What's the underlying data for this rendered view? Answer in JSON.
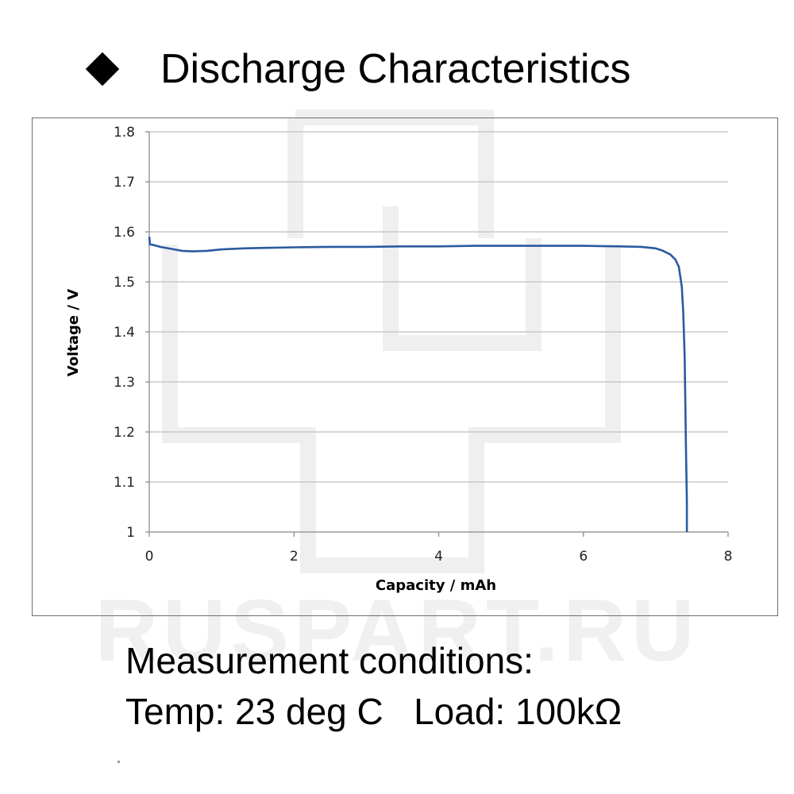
{
  "header": {
    "bullet_icon": "diamond-bullet-icon",
    "title": "Discharge Characteristics"
  },
  "watermark": {
    "text": "RUSPART.RU",
    "color": "#efefef"
  },
  "chart_data": {
    "type": "line",
    "title": "",
    "xlabel": "Capacity  /  mAh",
    "ylabel": "Voltage  /  V",
    "xlim": [
      0,
      8
    ],
    "ylim": [
      1,
      1.8
    ],
    "x_ticks": [
      "0",
      "2",
      "4",
      "6",
      "8"
    ],
    "y_ticks": [
      "1",
      "1.1",
      "1.2",
      "1.3",
      "1.4",
      "1.5",
      "1.6",
      "1.7",
      "1.8"
    ],
    "grid": "horizontal",
    "legend": "none",
    "line_color": "#2a5aa0",
    "series": [
      {
        "x": [
          0,
          0.01,
          0.05,
          0.15,
          0.3,
          0.45,
          0.6,
          0.8,
          1.0,
          1.3,
          1.6,
          2.0,
          2.5,
          3.0,
          3.5,
          4.0,
          4.5,
          5.0,
          5.5,
          6.0,
          6.5,
          6.8,
          7.0,
          7.1,
          7.2,
          7.27,
          7.32,
          7.36,
          7.38,
          7.4,
          7.41,
          7.42,
          7.43,
          7.43,
          7.43
        ],
        "y": [
          1.59,
          1.575,
          1.574,
          1.57,
          1.566,
          1.562,
          1.561,
          1.562,
          1.565,
          1.567,
          1.568,
          1.569,
          1.57,
          1.57,
          1.571,
          1.571,
          1.572,
          1.572,
          1.572,
          1.572,
          1.571,
          1.57,
          1.567,
          1.562,
          1.555,
          1.545,
          1.53,
          1.49,
          1.44,
          1.35,
          1.25,
          1.15,
          1.06,
          1.02,
          1.0
        ]
      }
    ]
  },
  "conditions": {
    "line1": "Measurement conditions:",
    "line2": "Temp: 23 deg C   Load: 100kΩ"
  }
}
